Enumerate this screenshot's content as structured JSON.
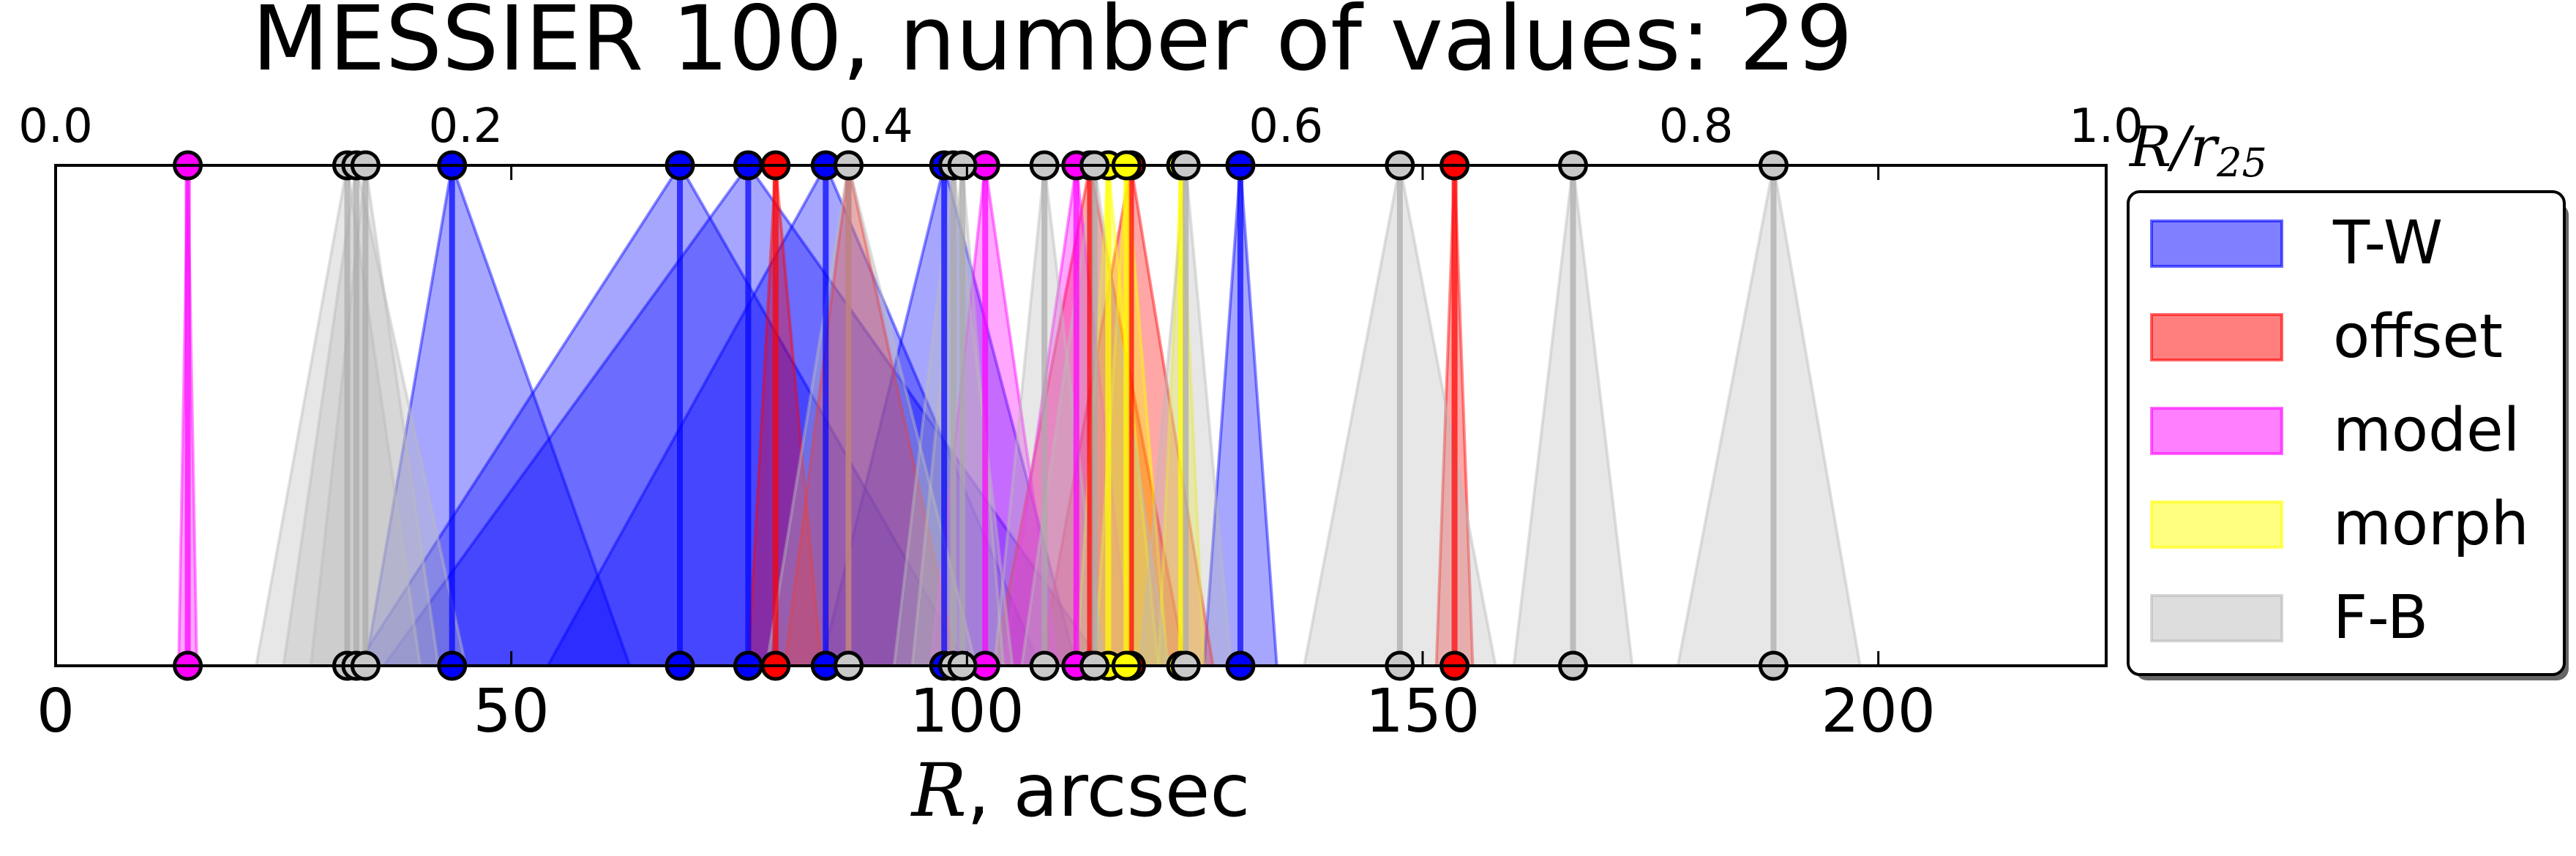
{
  "chart_data": {
    "type": "interval-plot",
    "title": "MESSIER 100, number of values: 29",
    "xlabel_italic": "R",
    "xlabel_rest": ", arcsec",
    "xlim": [
      0,
      225
    ],
    "xticks": [
      "0",
      "50",
      "100",
      "150",
      "200"
    ],
    "top_axis": {
      "label_main": "R/r",
      "label_sub": "25",
      "xlim": [
        0.0,
        1.0
      ],
      "ticks": [
        "0.0",
        "0.2",
        "0.4",
        "0.6",
        "0.8",
        "1.0"
      ]
    },
    "legend_position": "right",
    "series": [
      {
        "name": "T-W",
        "color": "#0000ff",
        "values": [
          {
            "x": 43.5,
            "lo": 34,
            "hi": 63
          },
          {
            "x": 68.5,
            "lo": 33,
            "hi": 100
          },
          {
            "x": 76,
            "lo": 36,
            "hi": 115
          },
          {
            "x": 84.5,
            "lo": 54,
            "hi": 108
          },
          {
            "x": 97.5,
            "lo": 84,
            "hi": 112
          },
          {
            "x": 130,
            "lo": 126,
            "hi": 134
          }
        ]
      },
      {
        "name": "offset",
        "color": "#ff0000",
        "values": [
          {
            "x": 79,
            "lo": 76,
            "hi": 84
          },
          {
            "x": 87,
            "lo": 80,
            "hi": 99
          },
          {
            "x": 113.5,
            "lo": 103,
            "hi": 124
          },
          {
            "x": 118,
            "lo": 108,
            "hi": 127
          },
          {
            "x": 153.5,
            "lo": 151.5,
            "hi": 155.5
          }
        ]
      },
      {
        "name": "model",
        "color": "#ff00ff",
        "values": [
          {
            "x": 14.5,
            "lo": 13.5,
            "hi": 15.5
          },
          {
            "x": 102,
            "lo": 96,
            "hi": 110
          },
          {
            "x": 112,
            "lo": 104,
            "hi": 118
          }
        ]
      },
      {
        "name": "morph",
        "color": "#ffff00",
        "values": [
          {
            "x": 115.5,
            "lo": 112,
            "hi": 121
          },
          {
            "x": 117.5,
            "lo": 114,
            "hi": 122
          },
          {
            "x": 123.5,
            "lo": 121,
            "hi": 126
          }
        ]
      },
      {
        "name": "F-B",
        "color": "#bbbbbb",
        "values": [
          {
            "x": 32,
            "lo": 22,
            "hi": 40
          },
          {
            "x": 33,
            "lo": 25,
            "hi": 45
          },
          {
            "x": 34,
            "lo": 28,
            "hi": 42
          },
          {
            "x": 87,
            "lo": 78,
            "hi": 101
          },
          {
            "x": 98.5,
            "lo": 92,
            "hi": 105
          },
          {
            "x": 99.5,
            "lo": 94,
            "hi": 104
          },
          {
            "x": 108.5,
            "lo": 103,
            "hi": 115
          },
          {
            "x": 114,
            "lo": 106,
            "hi": 122
          },
          {
            "x": 124,
            "lo": 119,
            "hi": 129
          },
          {
            "x": 147.5,
            "lo": 137,
            "hi": 158
          },
          {
            "x": 166.5,
            "lo": 160,
            "hi": 173
          },
          {
            "x": 188.5,
            "lo": 178,
            "hi": 198
          }
        ]
      }
    ]
  }
}
